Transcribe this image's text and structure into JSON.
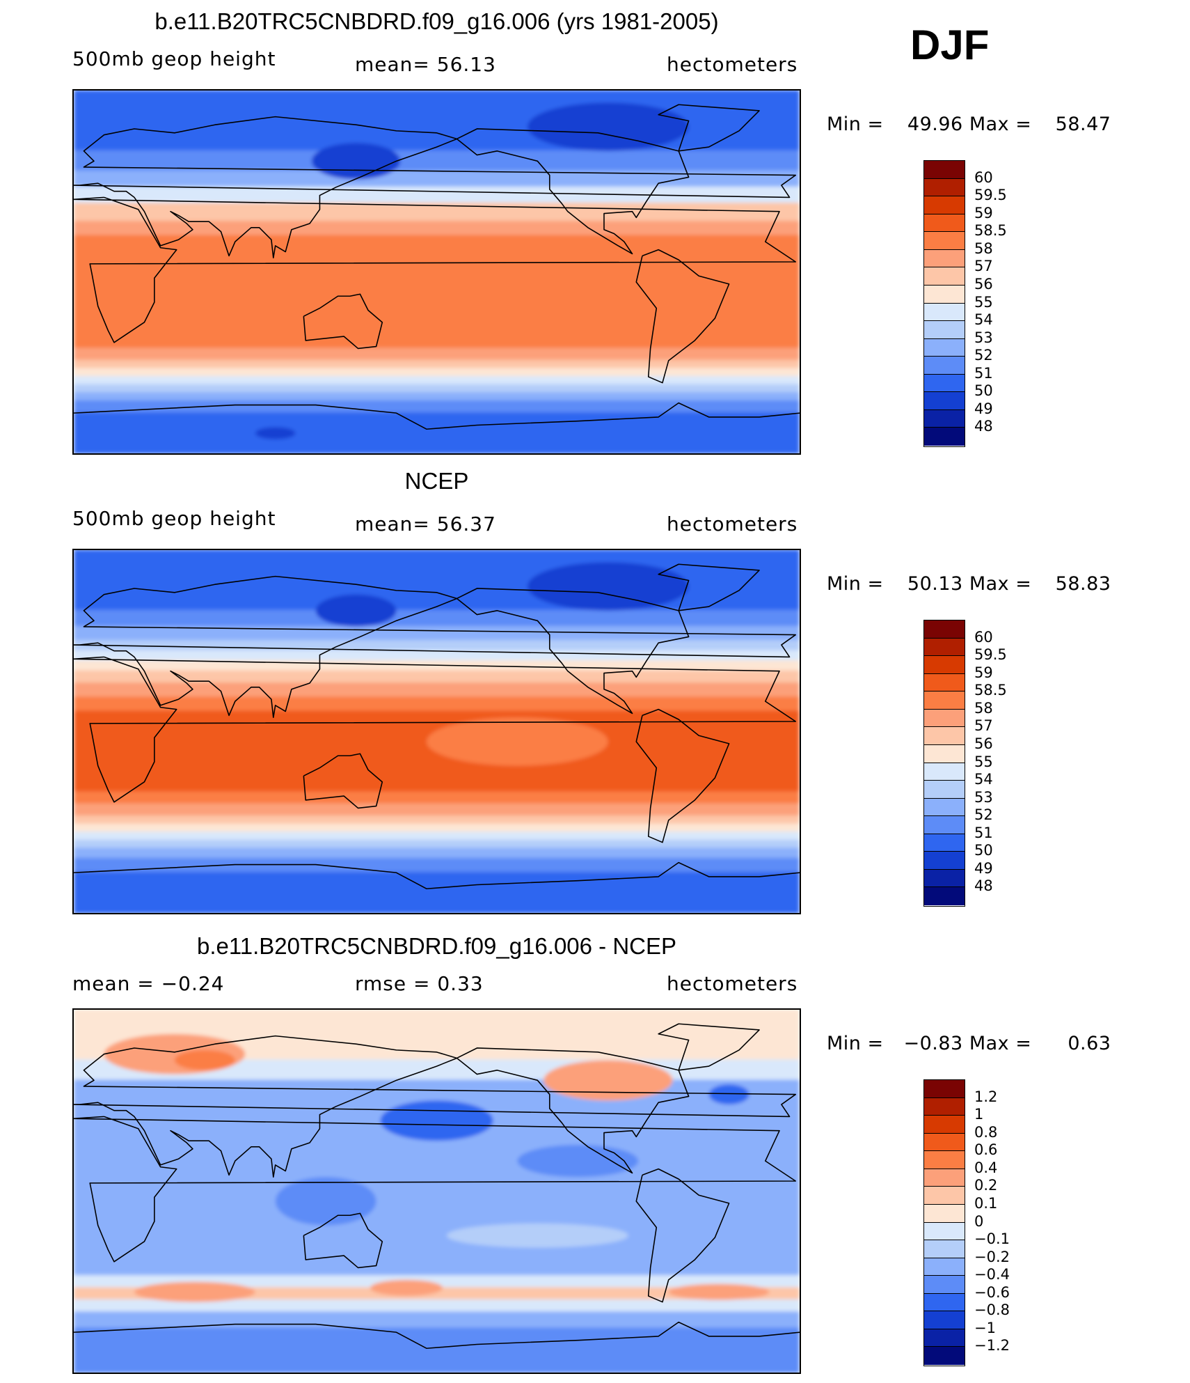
{
  "header": {
    "season": "DJF"
  },
  "panels": [
    {
      "id": "model",
      "title": "b.e11.B20TRC5CNBDRD.f09_g16.006 (yrs 1981-2005)",
      "left_label": "500mb  geop  height",
      "center_label": "mean=   56.13",
      "units": "hectometers",
      "min_label": "Min  =",
      "min_value": "49.96",
      "max_label": "Max  =",
      "max_value": "58.47",
      "colorbar": {
        "labels": [
          "60",
          "59.5",
          "59",
          "58.5",
          "58",
          "57",
          "56",
          "55",
          "54",
          "53",
          "52",
          "51",
          "50",
          "49",
          "48"
        ],
        "colors": [
          "#7a0403",
          "#b01f00",
          "#d73a01",
          "#f05a1b",
          "#fb7e44",
          "#fca07a",
          "#fdc6a8",
          "#fde6d4",
          "#d9e8fb",
          "#b4cef9",
          "#8bb0fb",
          "#5d8cf7",
          "#2f66f0",
          "#1440d2",
          "#0a22a6",
          "#020a7a"
        ]
      },
      "field": {
        "bands": [
          {
            "lat": 90,
            "color": "#2f66f0"
          },
          {
            "lat": 70,
            "color": "#2f66f0"
          },
          {
            "lat": 60,
            "color": "#5d8cf7"
          },
          {
            "lat": 50,
            "color": "#8bb0fb"
          },
          {
            "lat": 42,
            "color": "#d9e8fb"
          },
          {
            "lat": 34,
            "color": "#fdc6a8"
          },
          {
            "lat": 25,
            "color": "#fca07a"
          },
          {
            "lat": 18,
            "color": "#fb7e44"
          },
          {
            "lat": -30,
            "color": "#fb7e44"
          },
          {
            "lat": -38,
            "color": "#fca07a"
          },
          {
            "lat": -44,
            "color": "#fdc6a8"
          },
          {
            "lat": -48,
            "color": "#fde6d4"
          },
          {
            "lat": -52,
            "color": "#d9e8fb"
          },
          {
            "lat": -56,
            "color": "#b4cef9"
          },
          {
            "lat": -60,
            "color": "#8bb0fb"
          },
          {
            "lat": -64,
            "color": "#5d8cf7"
          },
          {
            "lat": -70,
            "color": "#2f66f0"
          },
          {
            "lat": -90,
            "color": "#2f66f0"
          }
        ],
        "blobs": [
          {
            "lon": 140,
            "lat": 55,
            "rx": 22,
            "ry": 9,
            "color": "#1440d2"
          },
          {
            "lon": 265,
            "lat": 72,
            "rx": 40,
            "ry": 12,
            "color": "#1440d2"
          },
          {
            "lon": 100,
            "lat": -80,
            "rx": 10,
            "ry": 3,
            "color": "#1440d2"
          }
        ]
      }
    },
    {
      "id": "obs",
      "title": "NCEP",
      "left_label": "500mb  geop  height",
      "center_label": "mean=   56.37",
      "units": "hectometers",
      "min_label": "Min  =",
      "min_value": "50.13",
      "max_label": "Max  =",
      "max_value": "58.83",
      "colorbar": {
        "labels": [
          "60",
          "59.5",
          "59",
          "58.5",
          "58",
          "57",
          "56",
          "55",
          "54",
          "53",
          "52",
          "51",
          "50",
          "49",
          "48"
        ],
        "colors": [
          "#7a0403",
          "#b01f00",
          "#d73a01",
          "#f05a1b",
          "#fb7e44",
          "#fca07a",
          "#fdc6a8",
          "#fde6d4",
          "#d9e8fb",
          "#b4cef9",
          "#8bb0fb",
          "#5d8cf7",
          "#2f66f0",
          "#1440d2",
          "#0a22a6",
          "#020a7a"
        ]
      },
      "field": {
        "bands": [
          {
            "lat": 90,
            "color": "#2f66f0"
          },
          {
            "lat": 70,
            "color": "#2f66f0"
          },
          {
            "lat": 60,
            "color": "#5d8cf7"
          },
          {
            "lat": 52,
            "color": "#8bb0fb"
          },
          {
            "lat": 45,
            "color": "#b4cef9"
          },
          {
            "lat": 40,
            "color": "#d9e8fb"
          },
          {
            "lat": 35,
            "color": "#fde6d4"
          },
          {
            "lat": 30,
            "color": "#fdc6a8"
          },
          {
            "lat": 24,
            "color": "#fca07a"
          },
          {
            "lat": 17,
            "color": "#fb7e44"
          },
          {
            "lat": 10,
            "color": "#f05a1b"
          },
          {
            "lat": -22,
            "color": "#f05a1b"
          },
          {
            "lat": -30,
            "color": "#fb7e44"
          },
          {
            "lat": -36,
            "color": "#fca07a"
          },
          {
            "lat": -42,
            "color": "#fdc6a8"
          },
          {
            "lat": -46,
            "color": "#fde6d4"
          },
          {
            "lat": -50,
            "color": "#d9e8fb"
          },
          {
            "lat": -54,
            "color": "#b4cef9"
          },
          {
            "lat": -58,
            "color": "#8bb0fb"
          },
          {
            "lat": -63,
            "color": "#5d8cf7"
          },
          {
            "lat": -70,
            "color": "#2f66f0"
          },
          {
            "lat": -90,
            "color": "#2f66f0"
          }
        ],
        "blobs": [
          {
            "lon": 220,
            "lat": -5,
            "rx": 45,
            "ry": 12,
            "color": "#fb7e44"
          },
          {
            "lon": 265,
            "lat": 72,
            "rx": 40,
            "ry": 12,
            "color": "#1440d2"
          },
          {
            "lon": 140,
            "lat": 60,
            "rx": 20,
            "ry": 8,
            "color": "#1440d2"
          }
        ]
      }
    },
    {
      "id": "diff",
      "title": "b.e11.B20TRC5CNBDRD.f09_g16.006 - NCEP",
      "left_label": "mean  =   −0.24",
      "center_label": "rmse  =    0.33",
      "units": "hectometers",
      "min_label": "Min  =",
      "min_value": "−0.83",
      "max_label": "Max  =",
      "max_value": "0.63",
      "colorbar": {
        "labels": [
          "1.2",
          "1",
          "0.8",
          "0.6",
          "0.4",
          "0.2",
          "0.1",
          "0",
          "−0.1",
          "−0.2",
          "−0.4",
          "−0.6",
          "−0.8",
          "−1",
          "−1.2"
        ],
        "colors": [
          "#7a0403",
          "#b01f00",
          "#d73a01",
          "#f05a1b",
          "#fb7e44",
          "#fca07a",
          "#fdc6a8",
          "#fde6d4",
          "#d9e8fb",
          "#b4cef9",
          "#8bb0fb",
          "#5d8cf7",
          "#2f66f0",
          "#1440d2",
          "#0a22a6",
          "#020a7a"
        ]
      },
      "field": {
        "bands": [
          {
            "lat": 90,
            "color": "#fde6d4"
          },
          {
            "lat": 75,
            "color": "#fde6d4"
          },
          {
            "lat": 65,
            "color": "#d9e8fb"
          },
          {
            "lat": 55,
            "color": "#8bb0fb"
          },
          {
            "lat": -35,
            "color": "#8bb0fb"
          },
          {
            "lat": -42,
            "color": "#d9e8fb"
          },
          {
            "lat": -48,
            "color": "#fdc6a8"
          },
          {
            "lat": -54,
            "color": "#d9e8fb"
          },
          {
            "lat": -60,
            "color": "#8bb0fb"
          },
          {
            "lat": -68,
            "color": "#5d8cf7"
          },
          {
            "lat": -90,
            "color": "#5d8cf7"
          }
        ],
        "blobs": [
          {
            "lon": 50,
            "lat": 68,
            "rx": 35,
            "ry": 10,
            "color": "#fca07a"
          },
          {
            "lon": 65,
            "lat": 65,
            "rx": 15,
            "ry": 5,
            "color": "#fb7e44"
          },
          {
            "lon": 265,
            "lat": 55,
            "rx": 32,
            "ry": 10,
            "color": "#fca07a"
          },
          {
            "lon": 180,
            "lat": 35,
            "rx": 28,
            "ry": 10,
            "color": "#2f66f0"
          },
          {
            "lon": 325,
            "lat": 48,
            "rx": 10,
            "ry": 5,
            "color": "#2f66f0"
          },
          {
            "lon": 60,
            "lat": -50,
            "rx": 30,
            "ry": 5,
            "color": "#fca07a"
          },
          {
            "lon": 165,
            "lat": -48,
            "rx": 18,
            "ry": 4,
            "color": "#fca07a"
          },
          {
            "lon": 320,
            "lat": -50,
            "rx": 25,
            "ry": 4,
            "color": "#fca07a"
          },
          {
            "lon": 125,
            "lat": -5,
            "rx": 25,
            "ry": 12,
            "color": "#5d8cf7"
          },
          {
            "lon": 250,
            "lat": 15,
            "rx": 30,
            "ry": 8,
            "color": "#5d8cf7"
          },
          {
            "lon": 230,
            "lat": -22,
            "rx": 45,
            "ry": 6,
            "color": "#b4cef9"
          }
        ]
      }
    }
  ]
}
